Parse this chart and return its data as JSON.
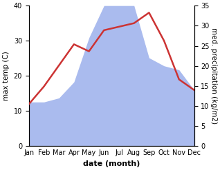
{
  "months": [
    "Jan",
    "Feb",
    "Mar",
    "Apr",
    "May",
    "Jun",
    "Jul",
    "Aug",
    "Sep",
    "Oct",
    "Nov",
    "Dec"
  ],
  "temp": [
    12,
    17,
    23,
    29,
    27,
    33,
    34,
    35,
    38,
    30,
    19,
    16
  ],
  "precip": [
    11,
    11,
    12,
    16,
    27,
    35,
    35,
    35,
    22,
    20,
    19,
    14
  ],
  "temp_color": "#cc3333",
  "precip_color": "#aabbee",
  "ylabel_left": "max temp (C)",
  "ylabel_right": "med. precipitation (kg/m2)",
  "xlabel": "date (month)",
  "ylim_left": [
    0,
    40
  ],
  "ylim_right": [
    0,
    35
  ],
  "yticks_left": [
    0,
    10,
    20,
    30,
    40
  ],
  "yticks_right": [
    0,
    5,
    10,
    15,
    20,
    25,
    30,
    35
  ],
  "bg_color": "#ffffff",
  "temp_linewidth": 1.8,
  "xlabel_fontsize": 8,
  "ylabel_fontsize": 7.5,
  "tick_fontsize": 7
}
